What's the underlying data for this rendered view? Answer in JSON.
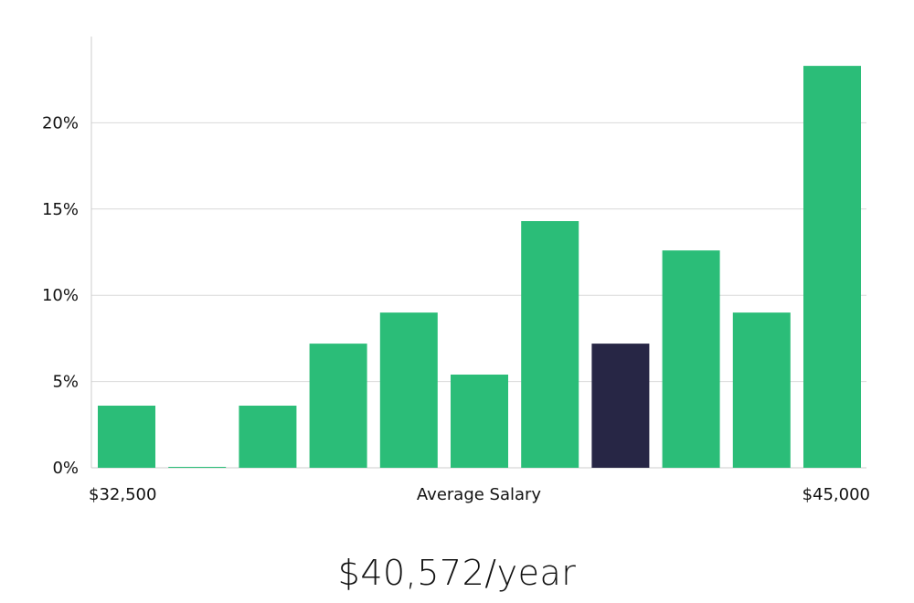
{
  "headline": "$40,572/year",
  "chart_data": {
    "type": "bar",
    "xlabel": "Average Salary",
    "x_start_label": "$32,500",
    "x_end_label": "$45,000",
    "ylim": [
      0,
      25
    ],
    "y_ticks": [
      0,
      5,
      10,
      15,
      20
    ],
    "y_tick_labels": [
      "0%",
      "5%",
      "10%",
      "15%",
      "20%"
    ],
    "grid": true,
    "values": [
      3.6,
      0.05,
      3.6,
      7.2,
      9.0,
      5.4,
      14.3,
      7.2,
      12.6,
      9.0,
      23.3
    ],
    "highlight_index": 7,
    "colors": {
      "bar": "#2bbd78",
      "highlight": "#272645",
      "grid": "#d9d9d9",
      "axis": "#cccccc"
    }
  }
}
